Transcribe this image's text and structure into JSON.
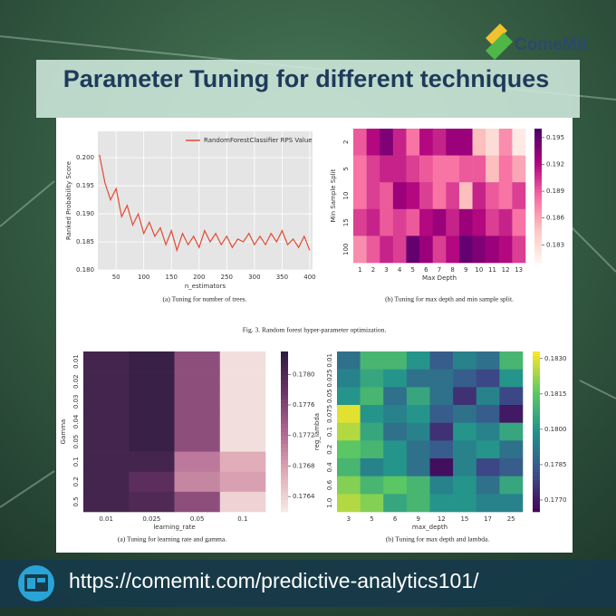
{
  "brand": "ComeMit",
  "header": {
    "title": "Parameter Tuning for different techniques"
  },
  "footer": {
    "url": "https://comemit.com/predictive-analytics101/"
  },
  "figure": {
    "caption_a": "(a) Tuning for number of trees.",
    "caption_b": "(b) Tuning for max depth and min sample split.",
    "caption_fig": "Fig. 3.  Random forest hyper-parameter optimization.",
    "caption_c": "(a) Tuning for learning rate and gamma.",
    "caption_d": "(b) Tuning for max depth and lambda."
  },
  "chart_data": [
    {
      "type": "line",
      "x_label": "n_estimators",
      "y_label": "Ranked Probability Score",
      "legend": "upper right",
      "grid": true,
      "x": [
        20,
        30,
        40,
        50,
        60,
        70,
        80,
        90,
        100,
        110,
        120,
        130,
        140,
        150,
        160,
        170,
        180,
        190,
        200,
        210,
        220,
        230,
        240,
        250,
        260,
        270,
        280,
        290,
        300,
        310,
        320,
        330,
        340,
        350,
        360,
        370,
        380,
        390,
        400
      ],
      "series": [
        {
          "name": "RandomForestClassifier RPS Value",
          "color": "#e24a33",
          "values": [
            0.2005,
            0.1955,
            0.1925,
            0.1945,
            0.1895,
            0.1915,
            0.188,
            0.19,
            0.1865,
            0.1885,
            0.186,
            0.1875,
            0.1845,
            0.187,
            0.1835,
            0.1865,
            0.1845,
            0.186,
            0.184,
            0.187,
            0.185,
            0.1865,
            0.1845,
            0.186,
            0.184,
            0.1855,
            0.185,
            0.1865,
            0.1845,
            0.186,
            0.1845,
            0.1865,
            0.185,
            0.187,
            0.1845,
            0.1855,
            0.184,
            0.186,
            0.1835
          ]
        }
      ],
      "xlim": [
        17,
        405
      ],
      "xticks": [
        50,
        100,
        150,
        200,
        250,
        300,
        350,
        400
      ],
      "ylim": [
        0.18,
        0.2047
      ],
      "yticks": [
        {
          "value": 0.18,
          "label": "0.180"
        },
        0.185,
        {
          "value": 0.19,
          "label": "0.190"
        },
        0.195,
        {
          "value": 0.2,
          "label": "0.200"
        }
      ]
    },
    {
      "type": "heatmap",
      "x_label": "Max Depth",
      "y_label": "Min Sample Split",
      "categories": [
        "1",
        "2",
        "3",
        "4",
        "5",
        "6",
        "7",
        "8",
        "9",
        "10",
        "11",
        "12",
        "13"
      ],
      "rows": [
        "2",
        "5",
        "10",
        "15",
        "100"
      ],
      "values": [
        [
          0.189,
          0.192,
          0.194,
          0.191,
          0.188,
          0.192,
          0.191,
          0.193,
          0.193,
          0.185,
          0.183,
          0.187,
          0.182
        ],
        [
          0.188,
          0.19,
          0.191,
          0.191,
          0.19,
          0.189,
          0.188,
          0.188,
          0.189,
          0.189,
          0.185,
          0.188,
          0.186
        ],
        [
          0.188,
          0.19,
          0.189,
          0.193,
          0.192,
          0.19,
          0.188,
          0.19,
          0.185,
          0.191,
          0.189,
          0.188,
          0.19
        ],
        [
          0.19,
          0.191,
          0.189,
          0.19,
          0.189,
          0.192,
          0.193,
          0.191,
          0.193,
          0.192,
          0.19,
          0.191,
          0.188
        ],
        [
          0.187,
          0.189,
          0.191,
          0.19,
          0.195,
          0.193,
          0.19,
          0.192,
          0.195,
          0.194,
          0.193,
          0.192,
          0.19
        ]
      ],
      "colormap": [
        "#fff7f3",
        "#fcc5c0",
        "#f768a1",
        "#ae017e",
        "#49006a"
      ],
      "clim": [
        0.181,
        0.196
      ],
      "cticks": [
        0.183,
        0.186,
        0.189,
        0.192,
        0.195
      ]
    },
    {
      "type": "heatmap",
      "x_label": "learning_rate",
      "y_label": "Gamma",
      "categories": [
        "0.01",
        "0.025",
        "0.05",
        "0.1"
      ],
      "rows": [
        "0.01",
        "0.02",
        "0.03",
        "0.04",
        "0.05",
        "0.1",
        "0.2",
        "0.5"
      ],
      "values": [
        [
          0.1781,
          0.1782,
          0.1775,
          0.1763
        ],
        [
          0.1781,
          0.1782,
          0.1775,
          0.1763
        ],
        [
          0.1781,
          0.1782,
          0.1775,
          0.1763
        ],
        [
          0.1781,
          0.1782,
          0.1775,
          0.1763
        ],
        [
          0.1781,
          0.1782,
          0.1775,
          0.1763
        ],
        [
          0.1781,
          0.1781,
          0.1771,
          0.1767
        ],
        [
          0.1781,
          0.1779,
          0.177,
          0.1768
        ],
        [
          0.1781,
          0.178,
          0.1775,
          0.1764
        ]
      ],
      "colormap": [
        "#f7ebe6",
        "#dfaab6",
        "#ae6690",
        "#6a3467",
        "#2d1b3e"
      ],
      "clim": [
        0.1762,
        0.1783
      ],
      "cticks": [
        0.1764,
        0.1768,
        0.1772,
        0.1776,
        {
          "value": 0.178,
          "label": "0.1780"
        }
      ]
    },
    {
      "type": "heatmap",
      "x_label": "max_depth",
      "y_label": "reg_lambda",
      "categories": [
        "3",
        "5",
        "6",
        "9",
        "12",
        "15",
        "17",
        "25"
      ],
      "rows": [
        "0.01",
        "0.025",
        "0.05",
        "0.075",
        "0.1",
        "0.2",
        "0.4",
        "0.6",
        "1.0"
      ],
      "values": [
        [
          0.179,
          0.181,
          0.181,
          0.18,
          0.1785,
          0.1795,
          0.179,
          0.181
        ],
        [
          0.1795,
          0.1805,
          0.18,
          0.179,
          0.179,
          0.1785,
          0.178,
          0.18
        ],
        [
          0.18,
          0.181,
          0.179,
          0.1805,
          0.179,
          0.1775,
          0.1795,
          0.178
        ],
        [
          0.183,
          0.18,
          0.1795,
          0.18,
          0.1785,
          0.179,
          0.1785,
          0.177
        ],
        [
          0.1825,
          0.1805,
          0.179,
          0.1795,
          0.1775,
          0.18,
          0.1795,
          0.1805
        ],
        [
          0.1815,
          0.181,
          0.18,
          0.179,
          0.1785,
          0.1795,
          0.18,
          0.179
        ],
        [
          0.181,
          0.1795,
          0.18,
          0.179,
          0.1768,
          0.1795,
          0.178,
          0.1785
        ],
        [
          0.182,
          0.181,
          0.1815,
          0.181,
          0.1795,
          0.18,
          0.179,
          0.1805
        ],
        [
          0.1825,
          0.182,
          0.1805,
          0.181,
          0.18,
          0.18,
          0.1795,
          0.1795
        ]
      ],
      "colormap": [
        "#440154",
        "#3b528b",
        "#21918c",
        "#5ec962",
        "#fde725"
      ],
      "clim": [
        0.1765,
        0.1833
      ],
      "cticks": [
        {
          "value": 0.177,
          "label": "0.1770"
        },
        0.1785,
        {
          "value": 0.18,
          "label": "0.1800"
        },
        0.1815,
        {
          "value": 0.183,
          "label": "0.1830"
        }
      ]
    }
  ]
}
